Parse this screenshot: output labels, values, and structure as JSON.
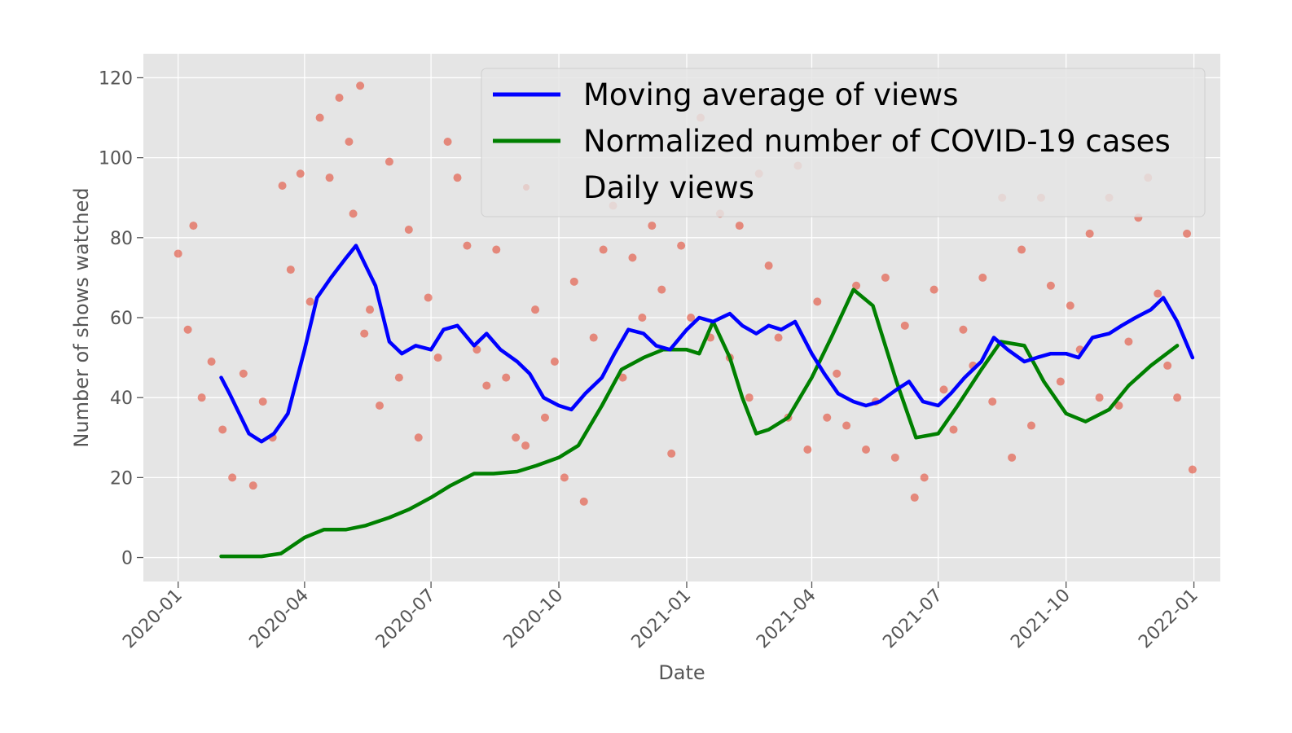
{
  "chart_data": {
    "type": "line",
    "title": "",
    "xlabel": "Date",
    "ylabel": "Number of shows watched",
    "x_range": [
      "2019-12-07",
      "2022-01-20"
    ],
    "ylim": [
      -6,
      126
    ],
    "grid": true,
    "legend_position": "top-right",
    "x_ticks": [
      "2020-01",
      "2020-04",
      "2020-07",
      "2020-10",
      "2021-01",
      "2021-04",
      "2021-07",
      "2021-10",
      "2022-01"
    ],
    "y_ticks": [
      0,
      20,
      40,
      60,
      80,
      100,
      120
    ],
    "colors": {
      "background": "#e5e5e5",
      "grid": "#ffffff",
      "moving_average": "#0000ff",
      "covid": "#008000",
      "daily_views": "#e24a33"
    },
    "series": [
      {
        "name": "Moving average of views",
        "type": "line",
        "x": [
          "2020-02-01",
          "2020-02-07",
          "2020-02-14",
          "2020-02-21",
          "2020-03-01",
          "2020-03-10",
          "2020-03-20",
          "2020-04-01",
          "2020-04-10",
          "2020-04-20",
          "2020-05-01",
          "2020-05-08",
          "2020-05-15",
          "2020-05-22",
          "2020-06-01",
          "2020-06-10",
          "2020-06-20",
          "2020-07-01",
          "2020-07-10",
          "2020-07-20",
          "2020-08-01",
          "2020-08-10",
          "2020-08-20",
          "2020-09-01",
          "2020-09-10",
          "2020-09-20",
          "2020-10-01",
          "2020-10-10",
          "2020-10-20",
          "2020-11-01",
          "2020-11-10",
          "2020-11-20",
          "2020-12-01",
          "2020-12-10",
          "2020-12-20",
          "2021-01-01",
          "2021-01-10",
          "2021-01-20",
          "2021-02-01",
          "2021-02-10",
          "2021-02-20",
          "2021-03-01",
          "2021-03-10",
          "2021-03-20",
          "2021-04-01",
          "2021-04-10",
          "2021-04-20",
          "2021-05-01",
          "2021-05-10",
          "2021-05-20",
          "2021-06-01",
          "2021-06-10",
          "2021-06-20",
          "2021-07-01",
          "2021-07-10",
          "2021-07-20",
          "2021-08-01",
          "2021-08-10",
          "2021-08-20",
          "2021-09-01",
          "2021-09-10",
          "2021-09-20",
          "2021-10-01",
          "2021-10-10",
          "2021-10-20",
          "2021-11-01",
          "2021-11-10",
          "2021-11-20",
          "2021-12-01",
          "2021-12-10",
          "2021-12-20",
          "2021-12-31"
        ],
        "y": [
          45,
          41,
          36,
          31,
          29,
          31,
          36,
          52,
          65,
          70,
          75,
          78,
          73,
          68,
          54,
          51,
          53,
          52,
          57,
          58,
          53,
          56,
          52,
          49,
          46,
          40,
          38,
          37,
          41,
          45,
          51,
          57,
          56,
          53,
          52,
          57,
          60,
          59,
          61,
          58,
          56,
          58,
          57,
          59,
          51,
          46,
          41,
          39,
          38,
          39,
          42,
          44,
          39,
          38,
          41,
          45,
          49,
          55,
          52,
          49,
          50,
          51,
          51,
          50,
          55,
          56,
          58,
          60,
          62,
          65,
          59,
          50
        ]
      },
      {
        "name": "Normalized number of COVID-19 cases",
        "type": "line",
        "x": [
          "2020-02-01",
          "2020-02-15",
          "2020-03-01",
          "2020-03-15",
          "2020-04-01",
          "2020-04-15",
          "2020-05-01",
          "2020-05-15",
          "2020-06-01",
          "2020-06-15",
          "2020-07-01",
          "2020-07-15",
          "2020-08-01",
          "2020-08-15",
          "2020-09-01",
          "2020-09-15",
          "2020-10-01",
          "2020-10-15",
          "2020-11-01",
          "2020-11-15",
          "2020-12-01",
          "2020-12-15",
          "2021-01-01",
          "2021-01-10",
          "2021-01-20",
          "2021-02-01",
          "2021-02-10",
          "2021-02-20",
          "2021-03-01",
          "2021-03-15",
          "2021-04-01",
          "2021-04-15",
          "2021-05-01",
          "2021-05-15",
          "2021-06-01",
          "2021-06-15",
          "2021-07-01",
          "2021-07-15",
          "2021-08-01",
          "2021-08-15",
          "2021-09-01",
          "2021-09-15",
          "2021-10-01",
          "2021-10-15",
          "2021-11-01",
          "2021-11-15",
          "2021-12-01",
          "2021-12-20"
        ],
        "y": [
          0.3,
          0.3,
          0.3,
          1,
          5,
          7,
          7,
          8,
          10,
          12,
          15,
          18,
          21,
          21,
          21.5,
          23,
          25,
          28,
          38,
          47,
          50,
          52,
          52,
          51,
          59,
          50,
          40,
          31,
          32,
          35,
          45,
          55,
          67,
          63,
          44,
          30,
          31,
          38,
          47,
          54,
          53,
          44,
          36,
          34,
          37,
          43,
          48,
          53
        ]
      },
      {
        "name": "Daily views",
        "type": "scatter",
        "x": [
          "2020-01-01",
          "2020-01-08",
          "2020-01-12",
          "2020-01-18",
          "2020-01-25",
          "2020-02-02",
          "2020-02-09",
          "2020-02-17",
          "2020-02-24",
          "2020-03-02",
          "2020-03-09",
          "2020-03-16",
          "2020-03-22",
          "2020-03-29",
          "2020-04-05",
          "2020-04-12",
          "2020-04-19",
          "2020-04-26",
          "2020-05-03",
          "2020-05-06",
          "2020-05-11",
          "2020-05-14",
          "2020-05-18",
          "2020-05-25",
          "2020-06-01",
          "2020-06-08",
          "2020-06-15",
          "2020-06-22",
          "2020-06-29",
          "2020-07-06",
          "2020-07-13",
          "2020-07-20",
          "2020-07-27",
          "2020-08-03",
          "2020-08-10",
          "2020-08-17",
          "2020-08-24",
          "2020-08-31",
          "2020-09-07",
          "2020-09-14",
          "2020-09-21",
          "2020-09-28",
          "2020-10-05",
          "2020-10-12",
          "2020-10-19",
          "2020-10-26",
          "2020-11-02",
          "2020-11-09",
          "2020-11-16",
          "2020-11-23",
          "2020-11-30",
          "2020-12-07",
          "2020-12-14",
          "2020-12-21",
          "2020-12-28",
          "2021-01-04",
          "2021-01-11",
          "2021-01-18",
          "2021-01-25",
          "2021-02-01",
          "2021-02-08",
          "2021-02-15",
          "2021-02-22",
          "2021-03-01",
          "2021-03-08",
          "2021-03-15",
          "2021-03-22",
          "2021-03-29",
          "2021-04-05",
          "2021-04-12",
          "2021-04-19",
          "2021-04-26",
          "2021-05-03",
          "2021-05-10",
          "2021-05-17",
          "2021-05-24",
          "2021-05-31",
          "2021-06-07",
          "2021-06-14",
          "2021-06-21",
          "2021-06-28",
          "2021-07-05",
          "2021-07-12",
          "2021-07-19",
          "2021-07-26",
          "2021-08-02",
          "2021-08-09",
          "2021-08-16",
          "2021-08-23",
          "2021-08-30",
          "2021-09-06",
          "2021-09-13",
          "2021-09-20",
          "2021-09-27",
          "2021-10-04",
          "2021-10-11",
          "2021-10-18",
          "2021-10-25",
          "2021-11-01",
          "2021-11-08",
          "2021-11-15",
          "2021-11-22",
          "2021-11-29",
          "2021-12-06",
          "2021-12-13",
          "2021-12-20",
          "2021-12-27",
          "2021-12-31"
        ],
        "y": [
          76,
          57,
          83,
          40,
          49,
          32,
          20,
          46,
          18,
          39,
          30,
          93,
          72,
          96,
          64,
          110,
          95,
          115,
          104,
          86,
          118,
          56,
          62,
          38,
          99,
          45,
          82,
          30,
          65,
          50,
          104,
          95,
          78,
          52,
          43,
          77,
          45,
          30,
          28,
          62,
          35,
          49,
          20,
          69,
          14,
          55,
          77,
          88,
          45,
          75,
          60,
          83,
          67,
          26,
          78,
          60,
          110,
          55,
          86,
          50,
          83,
          40,
          96,
          73,
          55,
          35,
          98,
          27,
          64,
          35,
          46,
          33,
          68,
          27,
          39,
          70,
          25,
          58,
          15,
          20,
          67,
          42,
          32,
          57,
          48,
          70,
          39,
          90,
          25,
          77,
          33,
          90,
          68,
          44,
          63,
          52,
          81,
          40,
          90,
          38,
          54,
          85,
          95,
          66,
          48,
          40,
          81,
          22
        ]
      }
    ]
  }
}
